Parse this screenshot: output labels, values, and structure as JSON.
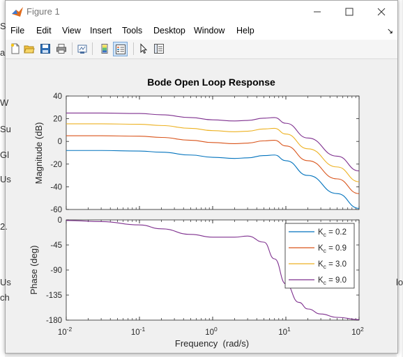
{
  "window": {
    "title": "Figure 1"
  },
  "menu": [
    "File",
    "Edit",
    "View",
    "Insert",
    "Tools",
    "Desktop",
    "Window",
    "Help"
  ],
  "toolbar_icons": [
    "new-figure-icon",
    "open-file-icon",
    "save-icon",
    "print-icon",
    "link-plot-icon",
    "colorbar-icon",
    "legend-icon",
    "edit-plot-icon",
    "property-inspector-icon"
  ],
  "background_fragments": [
    "S",
    "a",
    "W",
    "Su",
    "Gl",
    "Us",
    "2.",
    "Us",
    "ch",
    "lo"
  ],
  "chart_data": {
    "type": "line",
    "title": "Bode Open Loop Response",
    "xlabel": "Frequency  (rad/s)",
    "x_scale": "log",
    "xlim": [
      0.01,
      100
    ],
    "x_ticks": [
      {
        "value": 0.01,
        "base": "10",
        "exp": "-2"
      },
      {
        "value": 0.1,
        "base": "10",
        "exp": "-1"
      },
      {
        "value": 1,
        "base": "10",
        "exp": "0"
      },
      {
        "value": 10,
        "base": "10",
        "exp": "1"
      },
      {
        "value": 100,
        "base": "10",
        "exp": "2"
      }
    ],
    "legend_placement": "top-right of phase plot",
    "magnitude": {
      "ylabel": "Magnitude (dB)",
      "ylim": [
        -60,
        40
      ],
      "yticks": [
        "40",
        "20",
        "0",
        "-20",
        "-40",
        "-60"
      ],
      "series": [
        {
          "name_sub": "c",
          "name_pre": "K",
          "name_val": " = 0.2",
          "color": "#0072BD",
          "x": [
            0.01,
            0.03,
            0.1,
            0.2,
            0.5,
            1,
            2,
            3,
            5,
            7,
            10,
            20,
            50,
            100
          ],
          "y": [
            -8,
            -8,
            -8.5,
            -9.5,
            -12,
            -14,
            -15,
            -14.5,
            -12.5,
            -12,
            -17,
            -30,
            -46,
            -59
          ]
        },
        {
          "name_sub": "c",
          "name_pre": "K",
          "name_val": " = 0.9",
          "color": "#D95319",
          "x": [
            0.01,
            0.03,
            0.1,
            0.2,
            0.5,
            1,
            2,
            3,
            5,
            7,
            10,
            20,
            50,
            100
          ],
          "y": [
            5,
            5,
            4.6,
            3.5,
            1,
            -1,
            -2,
            -1.5,
            0.5,
            1,
            -4,
            -17,
            -33,
            -46
          ]
        },
        {
          "name_sub": "c",
          "name_pre": "K",
          "name_val": " = 3.0",
          "color": "#EDB120",
          "x": [
            0.01,
            0.03,
            0.1,
            0.2,
            0.5,
            1,
            2,
            3,
            5,
            7,
            10,
            20,
            50,
            100
          ],
          "y": [
            15.5,
            15.5,
            15.1,
            14,
            11.5,
            9.5,
            8.5,
            9,
            11,
            11.5,
            6.5,
            -6.5,
            -22.5,
            -35.5
          ]
        },
        {
          "name_sub": "c",
          "name_pre": "K",
          "name_val": " = 9.0",
          "color": "#7E2F8E",
          "x": [
            0.01,
            0.03,
            0.1,
            0.2,
            0.5,
            1,
            2,
            3,
            5,
            7,
            10,
            20,
            50,
            100
          ],
          "y": [
            25,
            25,
            24.6,
            23.5,
            21,
            19,
            18,
            18.5,
            20.5,
            21,
            16,
            3,
            -13,
            -26
          ]
        }
      ]
    },
    "phase": {
      "ylabel": "Phase (deg)",
      "ylim": [
        -180,
        0
      ],
      "yticks": [
        "0",
        "-45",
        "-90",
        "-135",
        "-180"
      ],
      "series": [
        {
          "color": "#7E2F8E",
          "x": [
            0.01,
            0.03,
            0.1,
            0.2,
            0.5,
            1,
            2,
            3,
            5,
            7,
            10,
            15,
            20,
            30,
            50,
            100
          ],
          "y": [
            -1,
            -3,
            -9,
            -16,
            -26,
            -31,
            -31,
            -29,
            -40,
            -70,
            -115,
            -148,
            -160,
            -169,
            -175,
            -179
          ]
        }
      ]
    }
  }
}
